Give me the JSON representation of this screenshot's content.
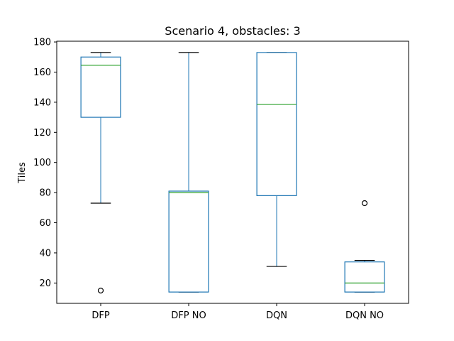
{
  "chart_data": {
    "type": "box",
    "title": "Scenario 4, obstacles: 3",
    "xlabel": "",
    "ylabel": "Tiles",
    "ylim": [
      6.5,
      180.5
    ],
    "yticks": [
      20,
      40,
      60,
      80,
      100,
      120,
      140,
      160,
      180
    ],
    "grid": false,
    "categories": [
      "DFP",
      "DFP NO",
      "DQN",
      "DQN NO"
    ],
    "boxes": [
      {
        "label": "DFP",
        "whisker_low": 73,
        "q1": 130,
        "median": 164.5,
        "q3": 170,
        "whisker_high": 173,
        "outliers": [
          15
        ]
      },
      {
        "label": "DFP NO",
        "whisker_low": 14,
        "q1": 14,
        "median": 80,
        "q3": 81,
        "whisker_high": 173,
        "outliers": []
      },
      {
        "label": "DQN",
        "whisker_low": 31,
        "q1": 78,
        "median": 138.5,
        "q3": 173,
        "whisker_high": 173,
        "outliers": []
      },
      {
        "label": "DQN NO",
        "whisker_low": 14,
        "q1": 14,
        "median": 20,
        "q3": 34,
        "whisker_high": 35,
        "outliers": [
          73
        ]
      }
    ],
    "colors": {
      "box": "#1f77b4",
      "median": "#2ca02c",
      "whisker_cap": "#000000",
      "outlier": "#000000"
    }
  }
}
